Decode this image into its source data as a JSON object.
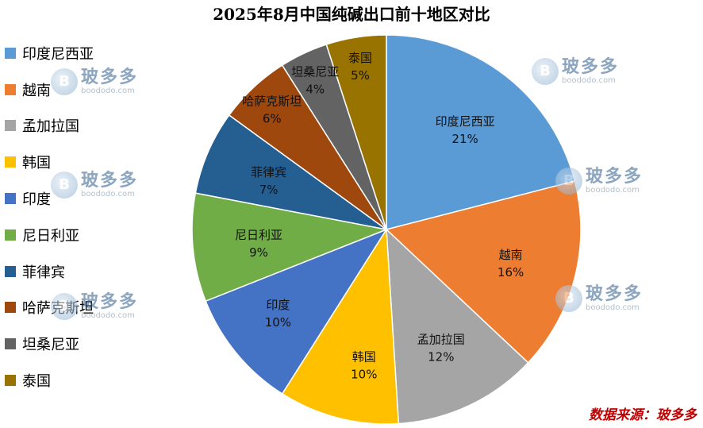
{
  "chart_data": {
    "type": "pie",
    "title": "2025年8月中国纯碱出口前十地区对比",
    "legend_position": "left",
    "slices": [
      {
        "label": "印度尼西亚",
        "percent_label": "21%",
        "value": 21,
        "color": "#5B9BD5"
      },
      {
        "label": "越南",
        "percent_label": "16%",
        "value": 16,
        "color": "#ED7D31"
      },
      {
        "label": "孟加拉国",
        "percent_label": "12%",
        "value": 12,
        "color": "#A5A5A5"
      },
      {
        "label": "韩国",
        "percent_label": "10%",
        "value": 10,
        "color": "#FFC000"
      },
      {
        "label": "印度",
        "percent_label": "10%",
        "value": 10,
        "color": "#4472C4"
      },
      {
        "label": "尼日利亚",
        "percent_label": "9%",
        "value": 9,
        "color": "#70AD47"
      },
      {
        "label": "菲律宾",
        "percent_label": "7%",
        "value": 7,
        "color": "#255E91"
      },
      {
        "label": "哈萨克斯坦",
        "percent_label": "6%",
        "value": 6,
        "color": "#9E480E"
      },
      {
        "label": "坦桑尼亚",
        "percent_label": "4%",
        "value": 4,
        "color": "#636363"
      },
      {
        "label": "泰国",
        "percent_label": "5%",
        "value": 5,
        "color": "#997300"
      }
    ]
  },
  "watermark": {
    "logo_letter": "B",
    "brand": "玻多多",
    "url": "boododo.com"
  },
  "source": "数据来源：玻多多"
}
